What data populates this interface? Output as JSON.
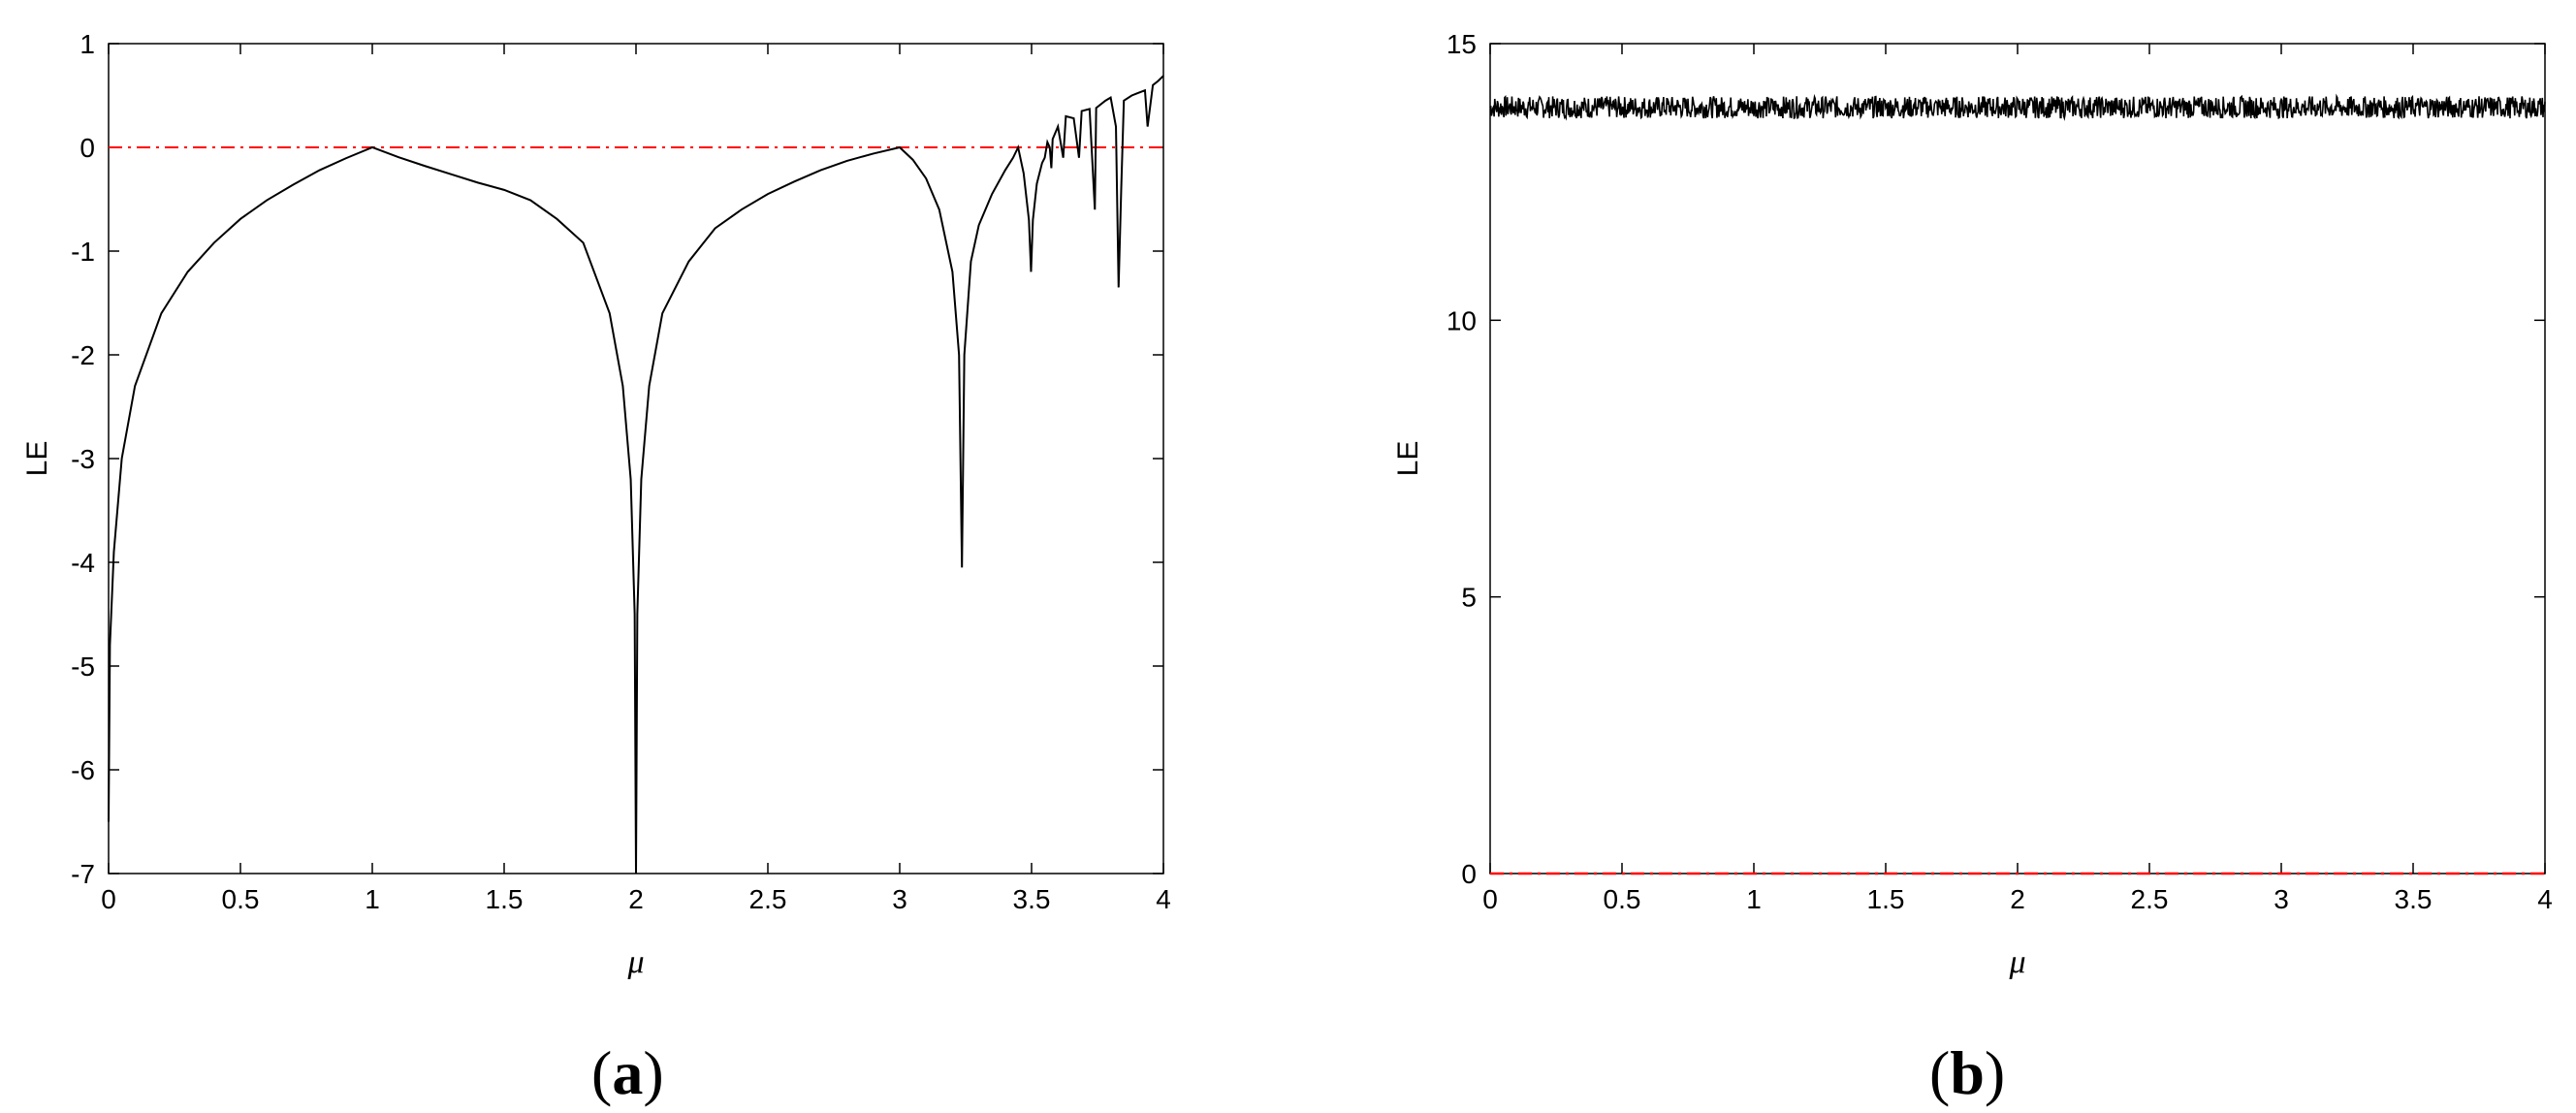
{
  "chart_data": [
    {
      "type": "line",
      "panel_label": "(a)",
      "panel_letter": "a",
      "xlabel": "μ",
      "ylabel": "LE",
      "xlim": [
        0,
        4
      ],
      "ylim": [
        -7,
        1
      ],
      "xticks": [
        "0",
        "0.5",
        "1",
        "1.5",
        "2",
        "2.5",
        "3",
        "3.5",
        "4"
      ],
      "yticks": [
        "-7",
        "-6",
        "-5",
        "-4",
        "-3",
        "-2",
        "-1",
        "0",
        "1"
      ],
      "grid": false,
      "reference_line": {
        "y": 0,
        "color": "#ff0000",
        "style": "dash-dot"
      },
      "series": [
        {
          "color": "#000000",
          "points": [
            [
              0.0,
              -6.5
            ],
            [
              0.005,
              -4.8
            ],
            [
              0.02,
              -3.9
            ],
            [
              0.05,
              -3.0
            ],
            [
              0.1,
              -2.3
            ],
            [
              0.2,
              -1.6
            ],
            [
              0.3,
              -1.2
            ],
            [
              0.4,
              -0.92
            ],
            [
              0.5,
              -0.69
            ],
            [
              0.6,
              -0.51
            ],
            [
              0.7,
              -0.36
            ],
            [
              0.8,
              -0.22
            ],
            [
              0.9,
              -0.105
            ],
            [
              1.0,
              0.0
            ],
            [
              1.1,
              -0.095
            ],
            [
              1.2,
              -0.18
            ],
            [
              1.3,
              -0.26
            ],
            [
              1.4,
              -0.34
            ],
            [
              1.5,
              -0.41
            ],
            [
              1.6,
              -0.51
            ],
            [
              1.7,
              -0.69
            ],
            [
              1.8,
              -0.92
            ],
            [
              1.9,
              -1.6
            ],
            [
              1.95,
              -2.3
            ],
            [
              1.98,
              -3.2
            ],
            [
              1.995,
              -4.5
            ],
            [
              2.0,
              -7.0
            ],
            [
              2.005,
              -4.5
            ],
            [
              2.02,
              -3.2
            ],
            [
              2.05,
              -2.3
            ],
            [
              2.1,
              -1.6
            ],
            [
              2.2,
              -1.1
            ],
            [
              2.3,
              -0.78
            ],
            [
              2.4,
              -0.6
            ],
            [
              2.5,
              -0.45
            ],
            [
              2.6,
              -0.33
            ],
            [
              2.7,
              -0.22
            ],
            [
              2.8,
              -0.13
            ],
            [
              2.9,
              -0.06
            ],
            [
              3.0,
              0.0
            ],
            [
              3.05,
              -0.12
            ],
            [
              3.1,
              -0.3
            ],
            [
              3.15,
              -0.6
            ],
            [
              3.2,
              -1.2
            ],
            [
              3.225,
              -2.0
            ],
            [
              3.236,
              -4.05
            ],
            [
              3.245,
              -2.0
            ],
            [
              3.27,
              -1.1
            ],
            [
              3.3,
              -0.75
            ],
            [
              3.35,
              -0.45
            ],
            [
              3.4,
              -0.22
            ],
            [
              3.43,
              -0.1
            ],
            [
              3.449,
              0.0
            ],
            [
              3.47,
              -0.25
            ],
            [
              3.49,
              -0.7
            ],
            [
              3.498,
              -1.2
            ],
            [
              3.505,
              -0.7
            ],
            [
              3.52,
              -0.35
            ],
            [
              3.54,
              -0.15
            ],
            [
              3.55,
              -0.1
            ],
            [
              3.56,
              0.05
            ],
            [
              3.569,
              0.0
            ],
            [
              3.575,
              -0.2
            ],
            [
              3.58,
              0.08
            ],
            [
              3.6,
              0.2
            ],
            [
              3.62,
              -0.1
            ],
            [
              3.63,
              0.3
            ],
            [
              3.66,
              0.28
            ],
            [
              3.68,
              -0.1
            ],
            [
              3.69,
              0.35
            ],
            [
              3.72,
              0.37
            ],
            [
              3.74,
              -0.6
            ],
            [
              3.745,
              0.38
            ],
            [
              3.78,
              0.45
            ],
            [
              3.8,
              0.48
            ],
            [
              3.82,
              0.2
            ],
            [
              3.83,
              -1.35
            ],
            [
              3.84,
              -0.4
            ],
            [
              3.85,
              0.45
            ],
            [
              3.88,
              0.5
            ],
            [
              3.9,
              0.52
            ],
            [
              3.93,
              0.55
            ],
            [
              3.94,
              0.2
            ],
            [
              3.96,
              0.6
            ],
            [
              3.98,
              0.64
            ],
            [
              4.0,
              0.69
            ]
          ]
        }
      ]
    },
    {
      "type": "line",
      "panel_label": "(b)",
      "panel_letter": "b",
      "xlabel": "μ",
      "ylabel": "LE",
      "xlim": [
        0,
        4
      ],
      "ylim": [
        0,
        15
      ],
      "xticks": [
        "0",
        "0.5",
        "1",
        "1.5",
        "2",
        "2.5",
        "3",
        "3.5",
        "4"
      ],
      "yticks": [
        "0",
        "5",
        "10",
        "15"
      ],
      "grid": false,
      "reference_line": {
        "y": 0,
        "color": "#ff0000",
        "style": "dash-dot"
      },
      "series": [
        {
          "color": "#000000",
          "mean": 13.85,
          "noise_amplitude": 0.2
        }
      ]
    }
  ],
  "panels": [
    {
      "open": "(",
      "letter": "a",
      "close": ")"
    },
    {
      "open": "(",
      "letter": "b",
      "close": ")"
    }
  ]
}
